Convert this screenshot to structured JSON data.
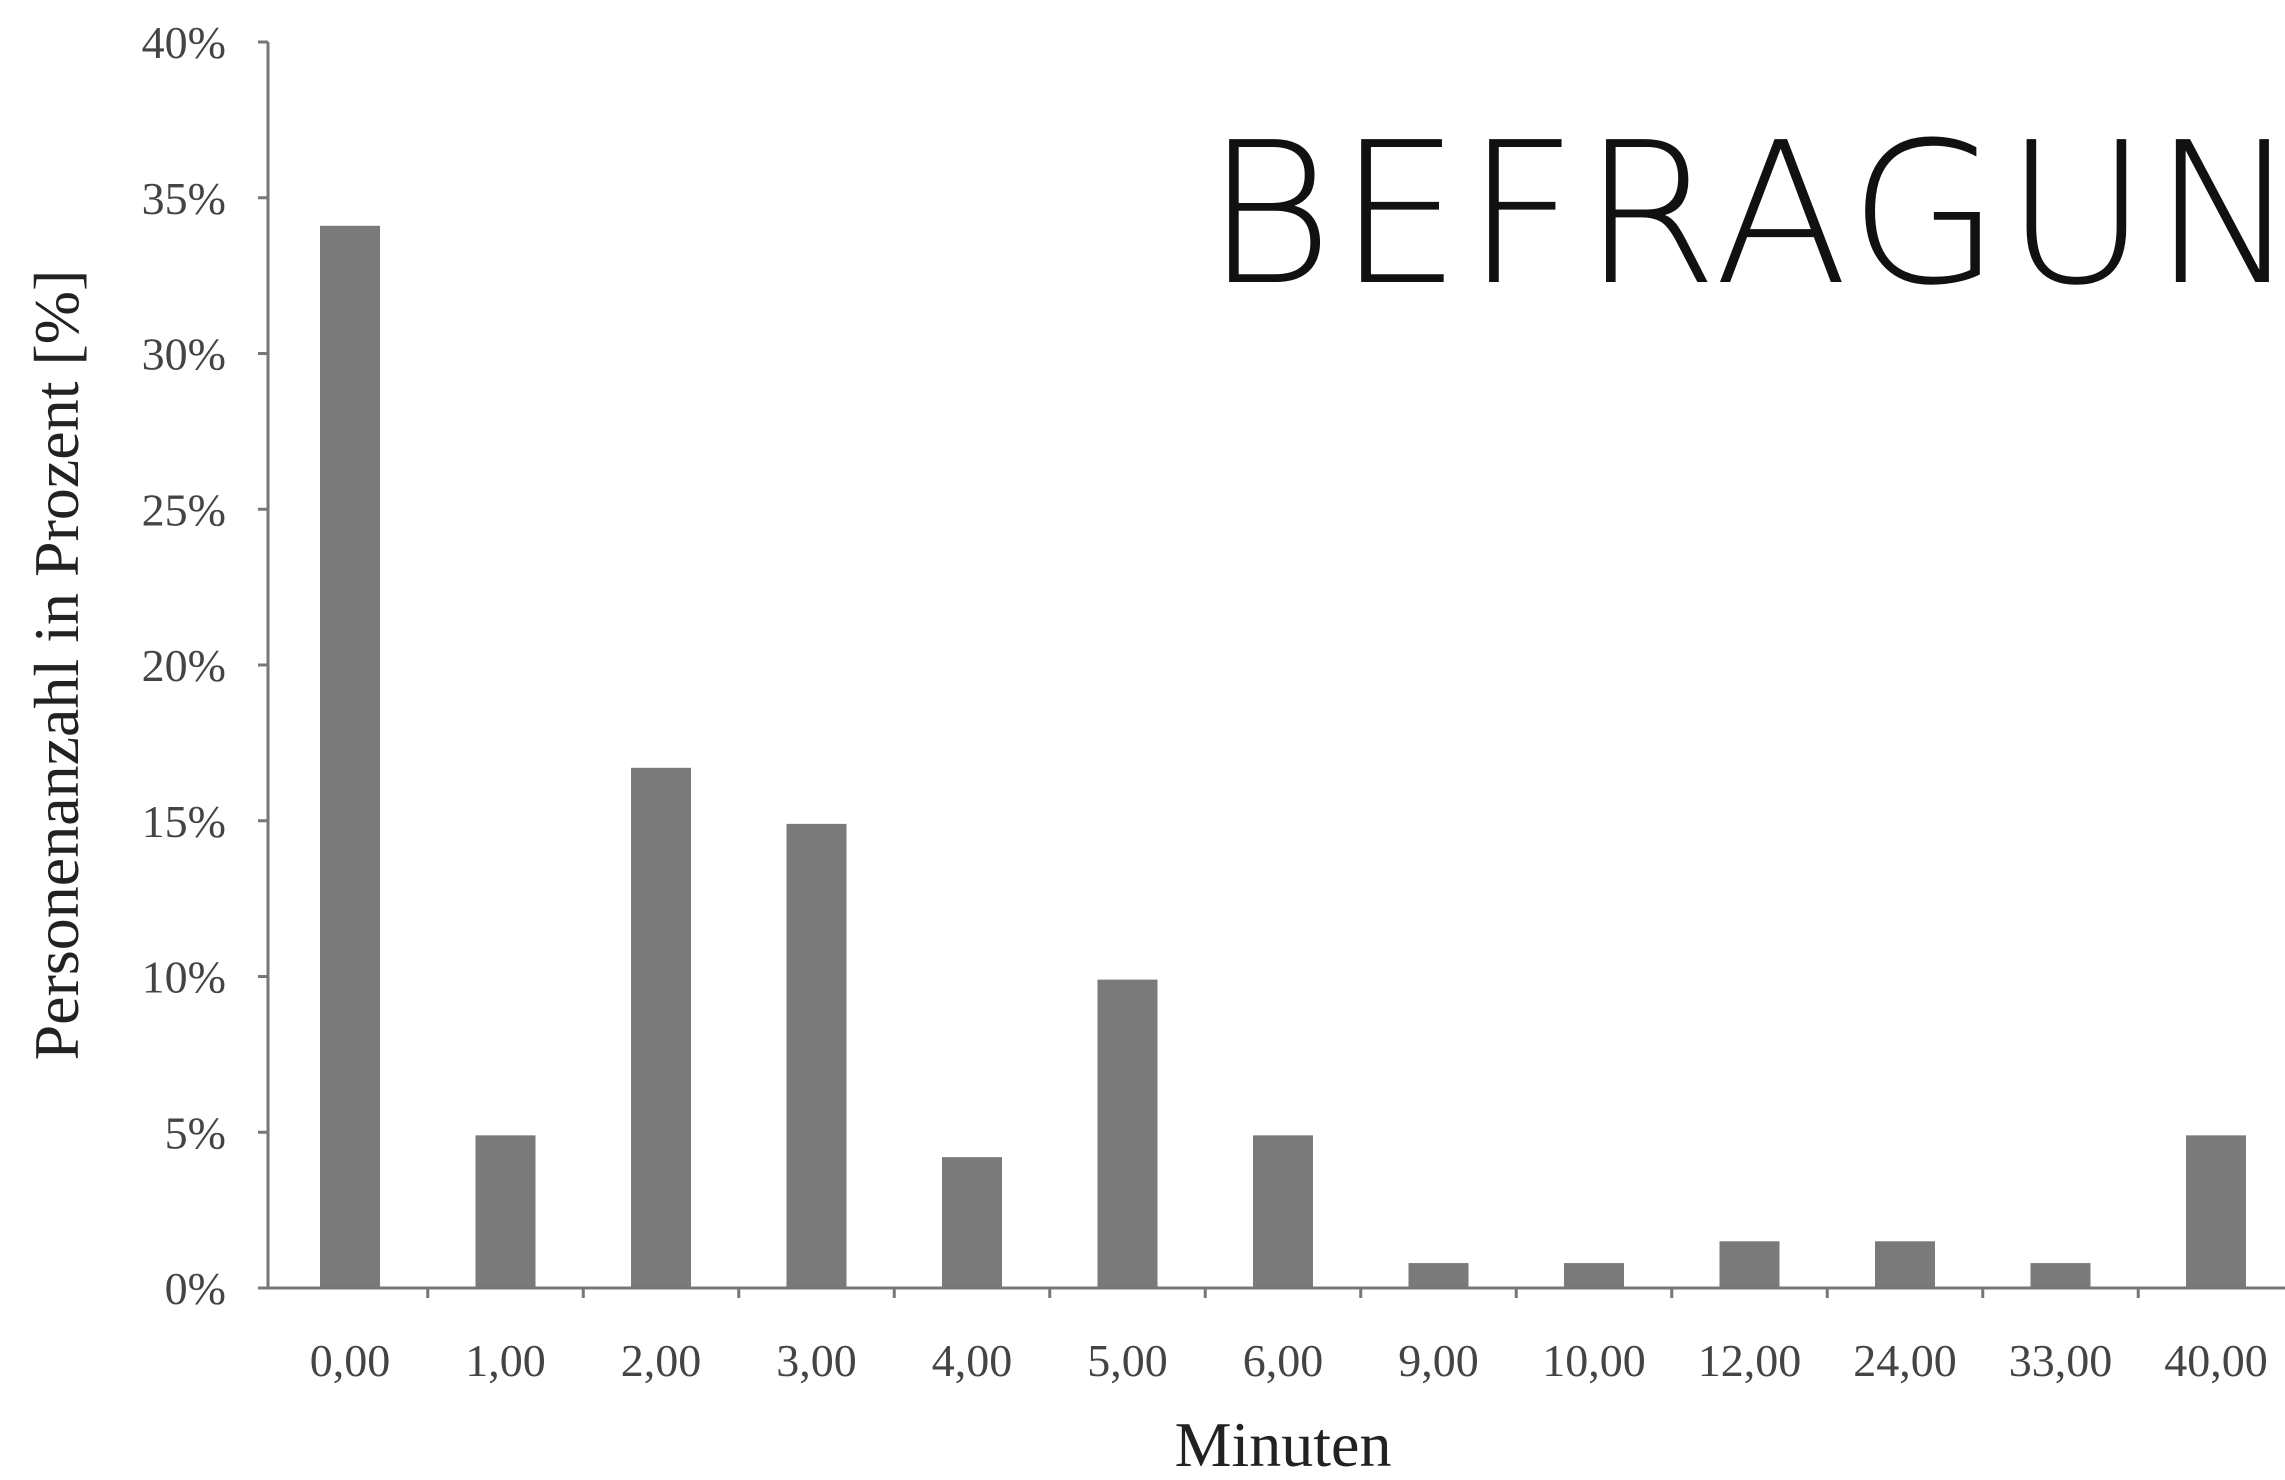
{
  "overlay_title": "Befragung",
  "chart_data": {
    "type": "bar",
    "xlabel": "Minuten",
    "ylabel": "Personenanzahl in Prozent [%]",
    "categories": [
      "0,00",
      "1,00",
      "2,00",
      "3,00",
      "4,00",
      "5,00",
      "6,00",
      "9,00",
      "10,00",
      "12,00",
      "24,00",
      "33,00",
      "40,00"
    ],
    "values": [
      34.1,
      4.9,
      16.7,
      14.9,
      4.2,
      9.9,
      4.9,
      0.8,
      0.8,
      1.5,
      1.5,
      0.8,
      4.9
    ],
    "ylim": [
      0,
      40
    ],
    "yticks": [
      "0%",
      "5%",
      "10%",
      "15%",
      "20%",
      "25%",
      "30%",
      "35%",
      "40%"
    ],
    "grid": false,
    "bar_color": "#7a7a7a"
  }
}
